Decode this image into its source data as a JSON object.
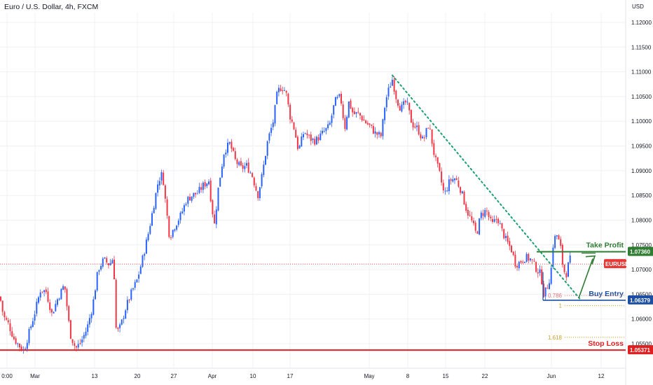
{
  "header": {
    "title": "Euro / U.S. Dollar, 4h, FXCM",
    "currency": "USD"
  },
  "chart_data": {
    "type": "candlestick",
    "symbol": "EURUSD",
    "timeframe": "4h",
    "ylim": [
      1.0515,
      1.1235
    ],
    "y_ticks": [
      "1.12000",
      "1.11500",
      "1.11000",
      "1.10500",
      "1.10000",
      "1.09500",
      "1.09000",
      "1.08500",
      "1.08000",
      "1.07500",
      "1.07000",
      "1.06500",
      "1.06000",
      "1.05500"
    ],
    "x_ticks": [
      "0:00",
      "Mar",
      "13",
      "20",
      "27",
      "Apr",
      "10",
      "17",
      "May",
      "8",
      "15",
      "22",
      "Jun",
      "12"
    ],
    "grid": true,
    "price_path": [
      [
        0,
        1.0645
      ],
      [
        5,
        1.0605
      ],
      [
        12,
        1.059
      ],
      [
        20,
        1.056
      ],
      [
        28,
        1.0545
      ],
      [
        34,
        1.0535
      ],
      [
        42,
        1.0575
      ],
      [
        50,
        1.0615
      ],
      [
        58,
        1.066
      ],
      [
        66,
        1.0655
      ],
      [
        74,
        1.061
      ],
      [
        82,
        1.064
      ],
      [
        92,
        1.067
      ],
      [
        100,
        1.057
      ],
      [
        108,
        1.054
      ],
      [
        116,
        1.0555
      ],
      [
        124,
        1.058
      ],
      [
        132,
        1.0625
      ],
      [
        140,
        1.07
      ],
      [
        148,
        1.072
      ],
      [
        156,
        1.071
      ],
      [
        162,
        1.0725
      ],
      [
        166,
        1.057
      ],
      [
        172,
        1.0585
      ],
      [
        180,
        1.0625
      ],
      [
        188,
        1.0655
      ],
      [
        196,
        1.068
      ],
      [
        204,
        1.0725
      ],
      [
        212,
        1.0775
      ],
      [
        220,
        1.0835
      ],
      [
        226,
        1.088
      ],
      [
        232,
        1.0895
      ],
      [
        236,
        1.084
      ],
      [
        242,
        1.0765
      ],
      [
        250,
        1.079
      ],
      [
        258,
        1.081
      ],
      [
        266,
        1.084
      ],
      [
        274,
        1.085
      ],
      [
        282,
        1.0855
      ],
      [
        290,
        1.087
      ],
      [
        298,
        1.088
      ],
      [
        302,
        1.083
      ],
      [
        306,
        1.079
      ],
      [
        312,
        1.087
      ],
      [
        320,
        1.094
      ],
      [
        328,
        1.0955
      ],
      [
        336,
        1.092
      ],
      [
        344,
        1.0905
      ],
      [
        352,
        1.091
      ],
      [
        360,
        1.089
      ],
      [
        368,
        1.085
      ],
      [
        374,
        1.089
      ],
      [
        382,
        1.096
      ],
      [
        390,
        1.1
      ],
      [
        396,
        1.106
      ],
      [
        402,
        1.107
      ],
      [
        408,
        1.106
      ],
      [
        414,
        1.101
      ],
      [
        420,
        1.0985
      ],
      [
        426,
        1.094
      ],
      [
        434,
        1.098
      ],
      [
        442,
        1.0965
      ],
      [
        450,
        1.096
      ],
      [
        460,
        1.0975
      ],
      [
        470,
        1.099
      ],
      [
        478,
        1.104
      ],
      [
        486,
        1.105
      ],
      [
        492,
        1.0985
      ],
      [
        498,
        1.104
      ],
      [
        504,
        1.1015
      ],
      [
        512,
        1.1015
      ],
      [
        520,
        1.1
      ],
      [
        528,
        1.099
      ],
      [
        536,
        1.0975
      ],
      [
        544,
        1.097
      ],
      [
        550,
        1.104
      ],
      [
        556,
        1.107
      ],
      [
        560,
        1.1085
      ],
      [
        566,
        1.1045
      ],
      [
        572,
        1.1025
      ],
      [
        580,
        1.104
      ],
      [
        588,
        1.0995
      ],
      [
        596,
        1.0985
      ],
      [
        604,
        1.096
      ],
      [
        612,
        1.0995
      ],
      [
        620,
        1.093
      ],
      [
        628,
        1.089
      ],
      [
        634,
        1.085
      ],
      [
        642,
        1.088
      ],
      [
        650,
        1.0885
      ],
      [
        658,
        1.086
      ],
      [
        666,
        1.082
      ],
      [
        674,
        1.0795
      ],
      [
        680,
        1.077
      ],
      [
        686,
        1.081
      ],
      [
        694,
        1.082
      ],
      [
        702,
        1.079
      ],
      [
        710,
        1.0805
      ],
      [
        716,
        1.078
      ],
      [
        722,
        1.076
      ],
      [
        730,
        1.074
      ],
      [
        736,
        1.071
      ],
      [
        742,
        1.0715
      ],
      [
        750,
        1.0725
      ],
      [
        758,
        1.072
      ],
      [
        766,
        1.07
      ],
      [
        772,
        1.069
      ],
      [
        776,
        1.065
      ],
      [
        780,
        1.066
      ],
      [
        786,
        1.069
      ],
      [
        790,
        1.076
      ],
      [
        795,
        1.077
      ],
      [
        800,
        1.0745
      ],
      [
        804,
        1.07
      ],
      [
        808,
        1.069
      ],
      [
        812,
        1.0715
      ],
      [
        816,
        1.0728
      ]
    ],
    "current_price": {
      "label": "EURUSD",
      "value": 1.07112
    },
    "annotations": {
      "take_profit": {
        "label": "Take Profit",
        "price": "1.07360",
        "value": 1.0736
      },
      "buy_entry": {
        "label": "Buy Entry",
        "price": "1.06379",
        "value": 1.06379
      },
      "stop_loss": {
        "label": "Stop Loss",
        "price": "1.05371",
        "value": 1.05371
      },
      "fib_levels": [
        {
          "label": "0.786",
          "value": 1.06475
        },
        {
          "label": "1",
          "value": 1.0627
        },
        {
          "label": "1.618",
          "value": 1.0563
        }
      ],
      "trendline": {
        "from": [
          560,
          1.1093
        ],
        "to": [
          828,
          1.064
        ]
      }
    },
    "colors": {
      "up": "#2962ff",
      "down": "#f23645",
      "take_profit": "#2e7d32",
      "buy_entry": "#1c4fa1",
      "stop_loss": "#e02020",
      "trendline": "#1aa070",
      "fib_786": "#e57373",
      "fib_1": "#c9a227",
      "fib_1618": "#c9a227",
      "current_price": "#e53935"
    }
  }
}
